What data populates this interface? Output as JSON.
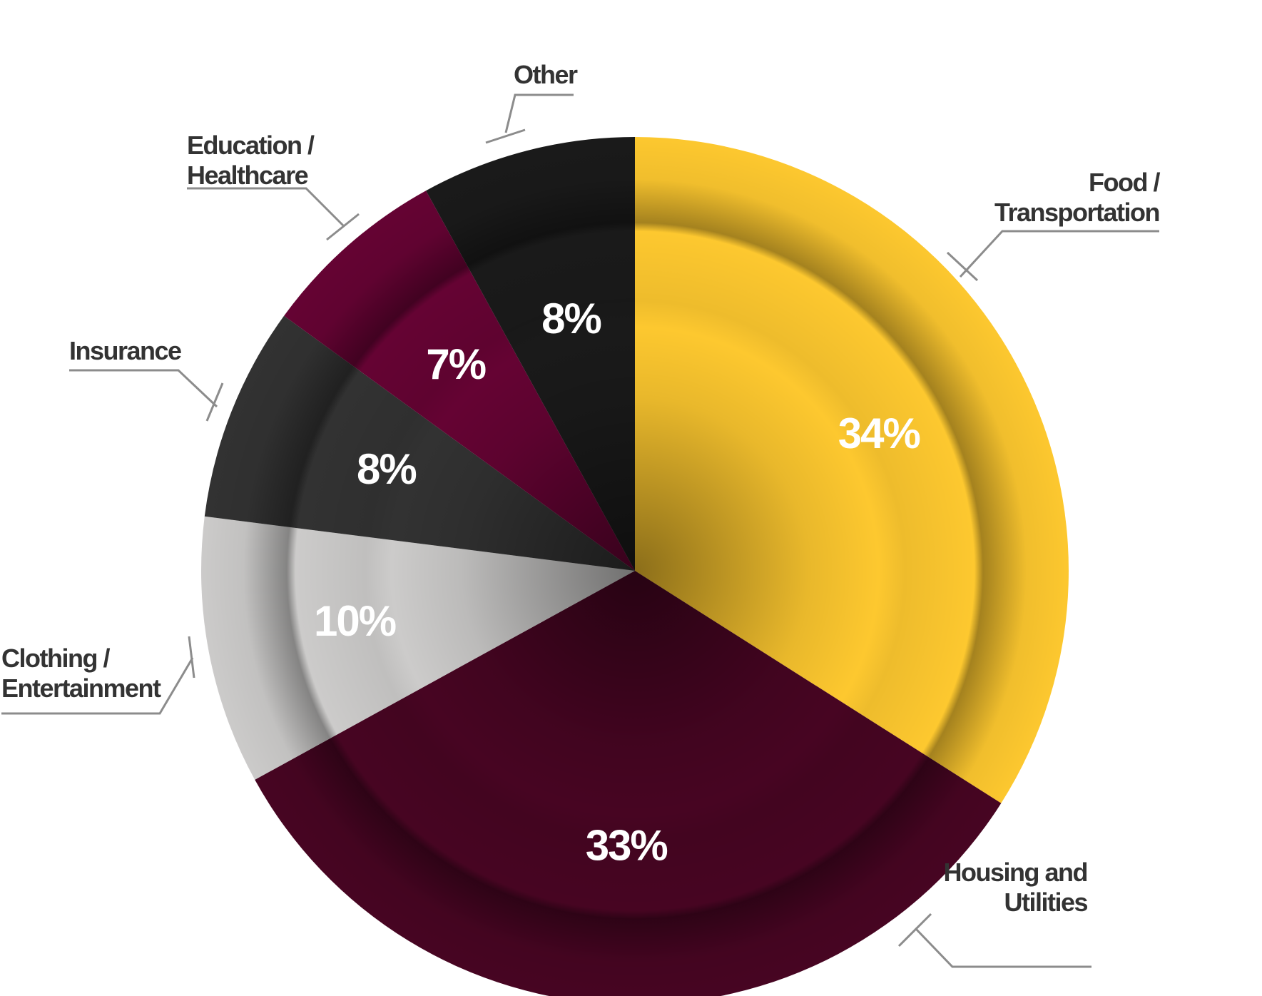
{
  "chart_data": {
    "type": "pie",
    "title": "",
    "legend": "none",
    "slices": [
      {
        "category": "Food / Transportation",
        "label_lines": [
          "Food /",
          "Transportation"
        ],
        "value": 34,
        "value_label": "34%",
        "color": "#fdc82f"
      },
      {
        "category": "Housing and Utilities",
        "label_lines": [
          "Housing and",
          "Utilities"
        ],
        "value": 33,
        "value_label": "33%",
        "color": "#470522"
      },
      {
        "category": "Clothing / Entertainment",
        "label_lines": [
          "Clothing /",
          "Entertainment"
        ],
        "value": 10,
        "value_label": "10%",
        "color": "#cccbca"
      },
      {
        "category": "Insurance",
        "label_lines": [
          "Insurance"
        ],
        "value": 8,
        "value_label": "8%",
        "color": "#323232"
      },
      {
        "category": "Education / Healthcare",
        "label_lines": [
          "Education /",
          "Healthcare"
        ],
        "value": 7,
        "value_label": "7%",
        "color": "#650333"
      },
      {
        "category": "Other",
        "label_lines": [
          "Other"
        ],
        "value": 8,
        "value_label": "8%",
        "color": "#1a1a1a"
      }
    ]
  }
}
